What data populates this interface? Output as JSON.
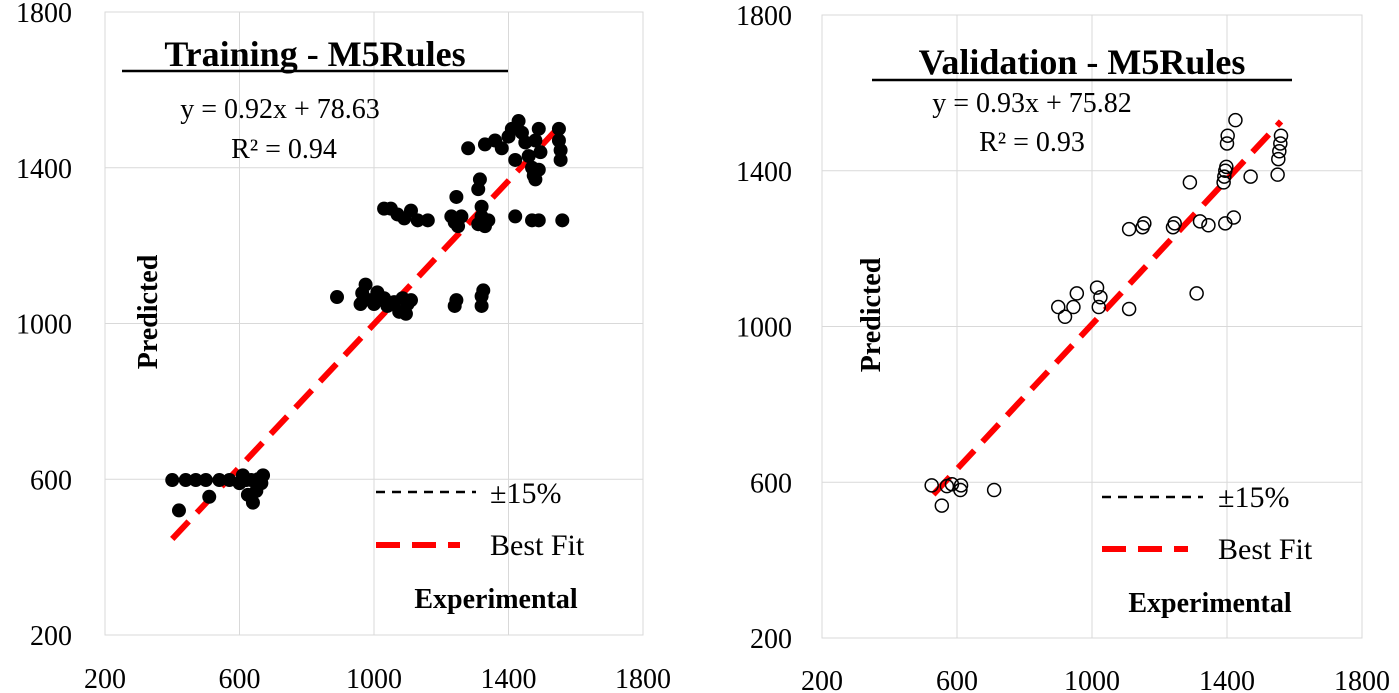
{
  "chart_data": [
    {
      "type": "scatter",
      "title": "Training - M5Rules",
      "equation": "y = 0.92x + 78.63",
      "r2_text": "R² = 0.94",
      "xlabel": "Experimental",
      "ylabel": "Predicted",
      "xlim": [
        200,
        1800
      ],
      "ylim": [
        200,
        1800
      ],
      "x_ticks": [
        "200",
        "600",
        "1000",
        "1400",
        "1800"
      ],
      "y_ticks": [
        "200",
        "600",
        "1000",
        "1400",
        "1800"
      ],
      "marker": "filled",
      "fit": {
        "slope": 0.92,
        "intercept": 78.63,
        "x_range": [
          400,
          1560
        ]
      },
      "legend": [
        "±15%",
        "Best Fit"
      ],
      "points": [
        [
          400,
          598
        ],
        [
          420,
          520
        ],
        [
          440,
          598
        ],
        [
          470,
          598
        ],
        [
          500,
          598
        ],
        [
          510,
          555
        ],
        [
          540,
          598
        ],
        [
          570,
          598
        ],
        [
          600,
          590
        ],
        [
          610,
          610
        ],
        [
          620,
          598
        ],
        [
          625,
          560
        ],
        [
          635,
          598
        ],
        [
          640,
          540
        ],
        [
          650,
          570
        ],
        [
          655,
          600
        ],
        [
          665,
          590
        ],
        [
          670,
          610
        ],
        [
          890,
          1068
        ],
        [
          960,
          1050
        ],
        [
          965,
          1078
        ],
        [
          975,
          1100
        ],
        [
          990,
          1060
        ],
        [
          1000,
          1050
        ],
        [
          1010,
          1080
        ],
        [
          1030,
          1065
        ],
        [
          1040,
          1045
        ],
        [
          1060,
          1055
        ],
        [
          1075,
          1030
        ],
        [
          1085,
          1065
        ],
        [
          1095,
          1025
        ],
        [
          1100,
          1050
        ],
        [
          1110,
          1060
        ],
        [
          1030,
          1295
        ],
        [
          1050,
          1295
        ],
        [
          1070,
          1280
        ],
        [
          1090,
          1270
        ],
        [
          1110,
          1290
        ],
        [
          1130,
          1265
        ],
        [
          1160,
          1265
        ],
        [
          1230,
          1275
        ],
        [
          1240,
          1260
        ],
        [
          1250,
          1250
        ],
        [
          1260,
          1275
        ],
        [
          1240,
          1045
        ],
        [
          1245,
          1060
        ],
        [
          1320,
          1045
        ],
        [
          1320,
          1070
        ],
        [
          1325,
          1085
        ],
        [
          1310,
          1255
        ],
        [
          1320,
          1275
        ],
        [
          1330,
          1250
        ],
        [
          1340,
          1265
        ],
        [
          1245,
          1325
        ],
        [
          1310,
          1345
        ],
        [
          1315,
          1370
        ],
        [
          1320,
          1300
        ],
        [
          1280,
          1450
        ],
        [
          1330,
          1460
        ],
        [
          1360,
          1470
        ],
        [
          1380,
          1450
        ],
        [
          1400,
          1480
        ],
        [
          1410,
          1500
        ],
        [
          1420,
          1420
        ],
        [
          1430,
          1520
        ],
        [
          1440,
          1490
        ],
        [
          1450,
          1465
        ],
        [
          1460,
          1430
        ],
        [
          1470,
          1400
        ],
        [
          1475,
          1380
        ],
        [
          1480,
          1470
        ],
        [
          1490,
          1500
        ],
        [
          1495,
          1440
        ],
        [
          1420,
          1275
        ],
        [
          1470,
          1265
        ],
        [
          1490,
          1265
        ],
        [
          1550,
          1500
        ],
        [
          1555,
          1445
        ],
        [
          1555,
          1420
        ],
        [
          1560,
          1265
        ],
        [
          1550,
          1470
        ],
        [
          1480,
          1370
        ],
        [
          1490,
          1395
        ]
      ]
    },
    {
      "type": "scatter",
      "title": "Validation - M5Rules",
      "equation": "y = 0.93x + 75.82",
      "r2_text": "R² = 0.93",
      "xlabel": "Experimental",
      "ylabel": "Predicted",
      "xlim": [
        200,
        1800
      ],
      "ylim": [
        200,
        1800
      ],
      "x_ticks": [
        "200",
        "600",
        "1000",
        "1400",
        "1800"
      ],
      "y_ticks": [
        "200",
        "600",
        "1000",
        "1400",
        "1800"
      ],
      "marker": "hollow",
      "fit": {
        "slope": 0.93,
        "intercept": 75.82,
        "x_range": [
          530,
          1560
        ]
      },
      "legend": [
        "±15%",
        "Best Fit"
      ],
      "points": [
        [
          525,
          592
        ],
        [
          555,
          540
        ],
        [
          570,
          590
        ],
        [
          585,
          595
        ],
        [
          610,
          580
        ],
        [
          612,
          592
        ],
        [
          710,
          580
        ],
        [
          900,
          1050
        ],
        [
          920,
          1025
        ],
        [
          945,
          1050
        ],
        [
          955,
          1085
        ],
        [
          1015,
          1100
        ],
        [
          1020,
          1050
        ],
        [
          1025,
          1075
        ],
        [
          1110,
          1045
        ],
        [
          1110,
          1250
        ],
        [
          1150,
          1255
        ],
        [
          1155,
          1265
        ],
        [
          1240,
          1255
        ],
        [
          1245,
          1265
        ],
        [
          1290,
          1370
        ],
        [
          1310,
          1085
        ],
        [
          1320,
          1270
        ],
        [
          1345,
          1260
        ],
        [
          1390,
          1370
        ],
        [
          1392,
          1385
        ],
        [
          1395,
          1400
        ],
        [
          1398,
          1410
        ],
        [
          1400,
          1470
        ],
        [
          1402,
          1490
        ],
        [
          1395,
          1265
        ],
        [
          1420,
          1280
        ],
        [
          1425,
          1530
        ],
        [
          1470,
          1385
        ],
        [
          1550,
          1390
        ],
        [
          1552,
          1430
        ],
        [
          1555,
          1450
        ],
        [
          1558,
          1470
        ],
        [
          1560,
          1490
        ]
      ]
    }
  ]
}
